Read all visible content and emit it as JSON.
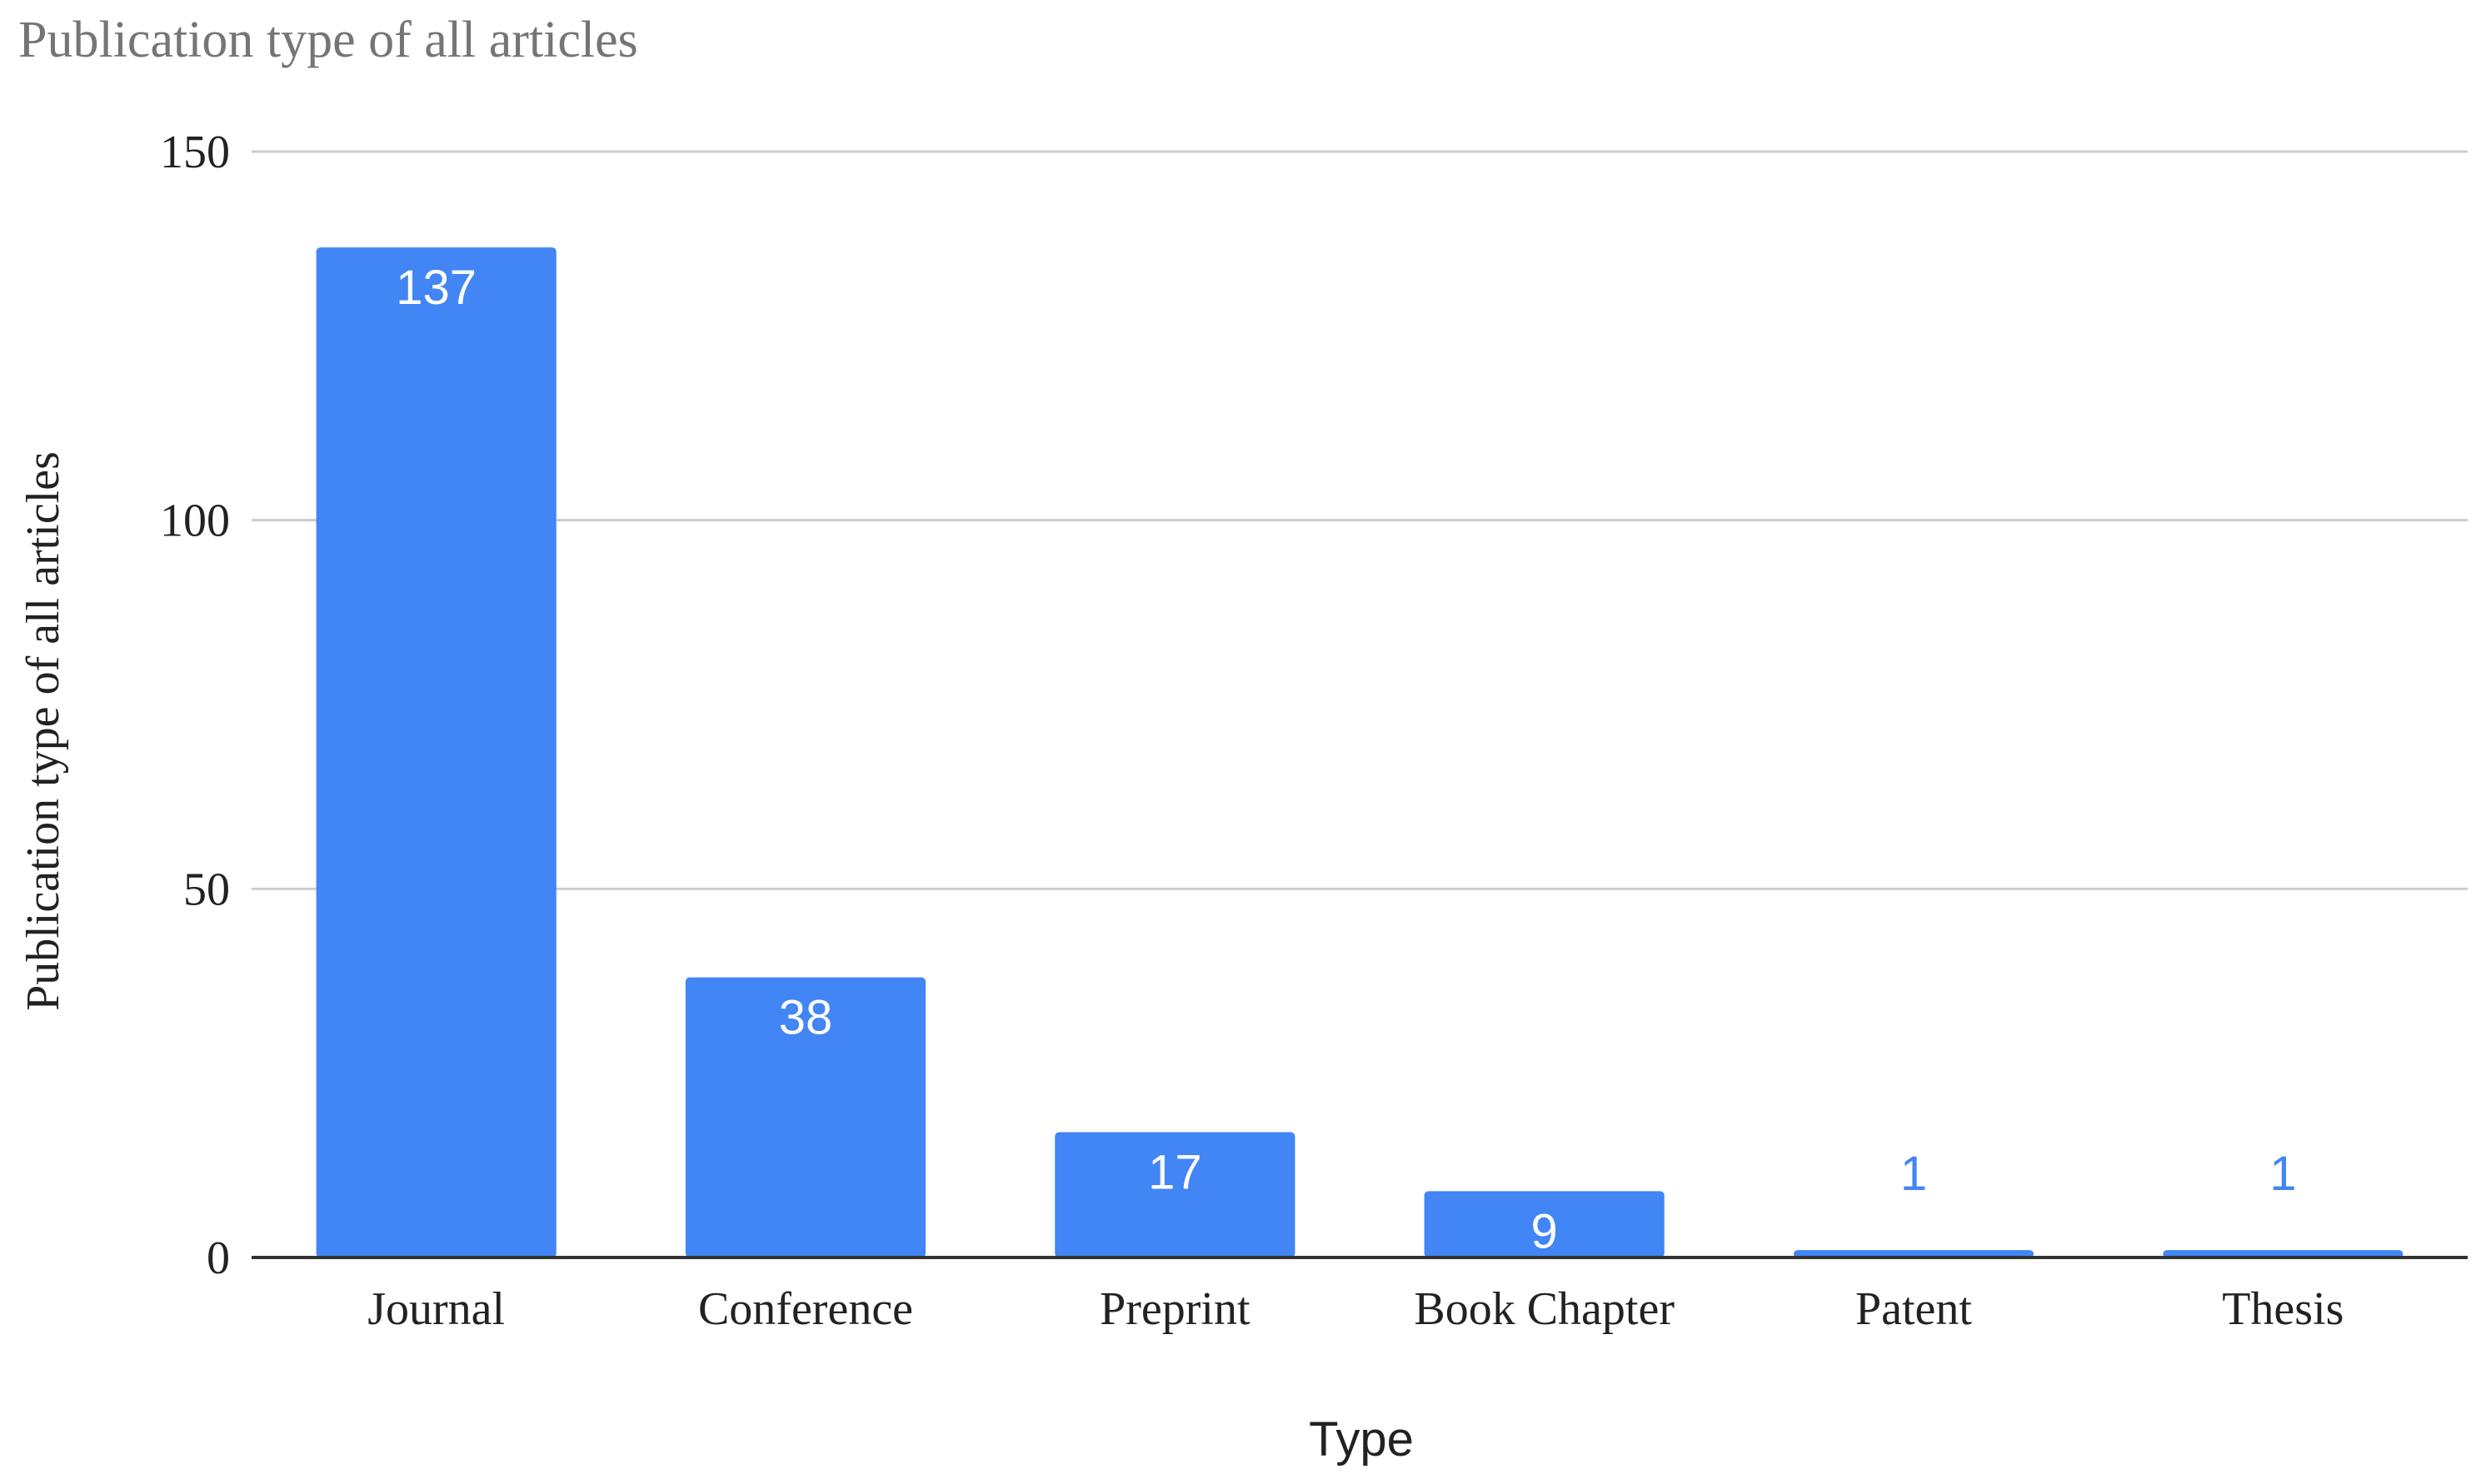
{
  "chart_data": {
    "type": "bar",
    "title": "Publication type of all articles",
    "xlabel": "Type",
    "ylabel": "Publication type of all articles",
    "categories": [
      "Journal",
      "Conference",
      "Preprint",
      "Book Chapter",
      "Patent",
      "Thesis"
    ],
    "values": [
      137,
      38,
      17,
      9,
      1,
      1
    ],
    "data_labels": [
      "137",
      "38",
      "17",
      "9",
      "1",
      "1"
    ],
    "ylim": [
      0,
      150
    ],
    "yticks": [
      0,
      50,
      100,
      150
    ],
    "ytick_labels": [
      "0",
      "50",
      "100",
      "150"
    ],
    "grid": true,
    "legend": "none",
    "colors": {
      "bar": "#4285f4",
      "title": "#757575",
      "gridline": "#cccccc",
      "axis": "#333333",
      "text": "#222222",
      "label_inside": "#ffffff",
      "label_outside": "#4285f4"
    }
  }
}
